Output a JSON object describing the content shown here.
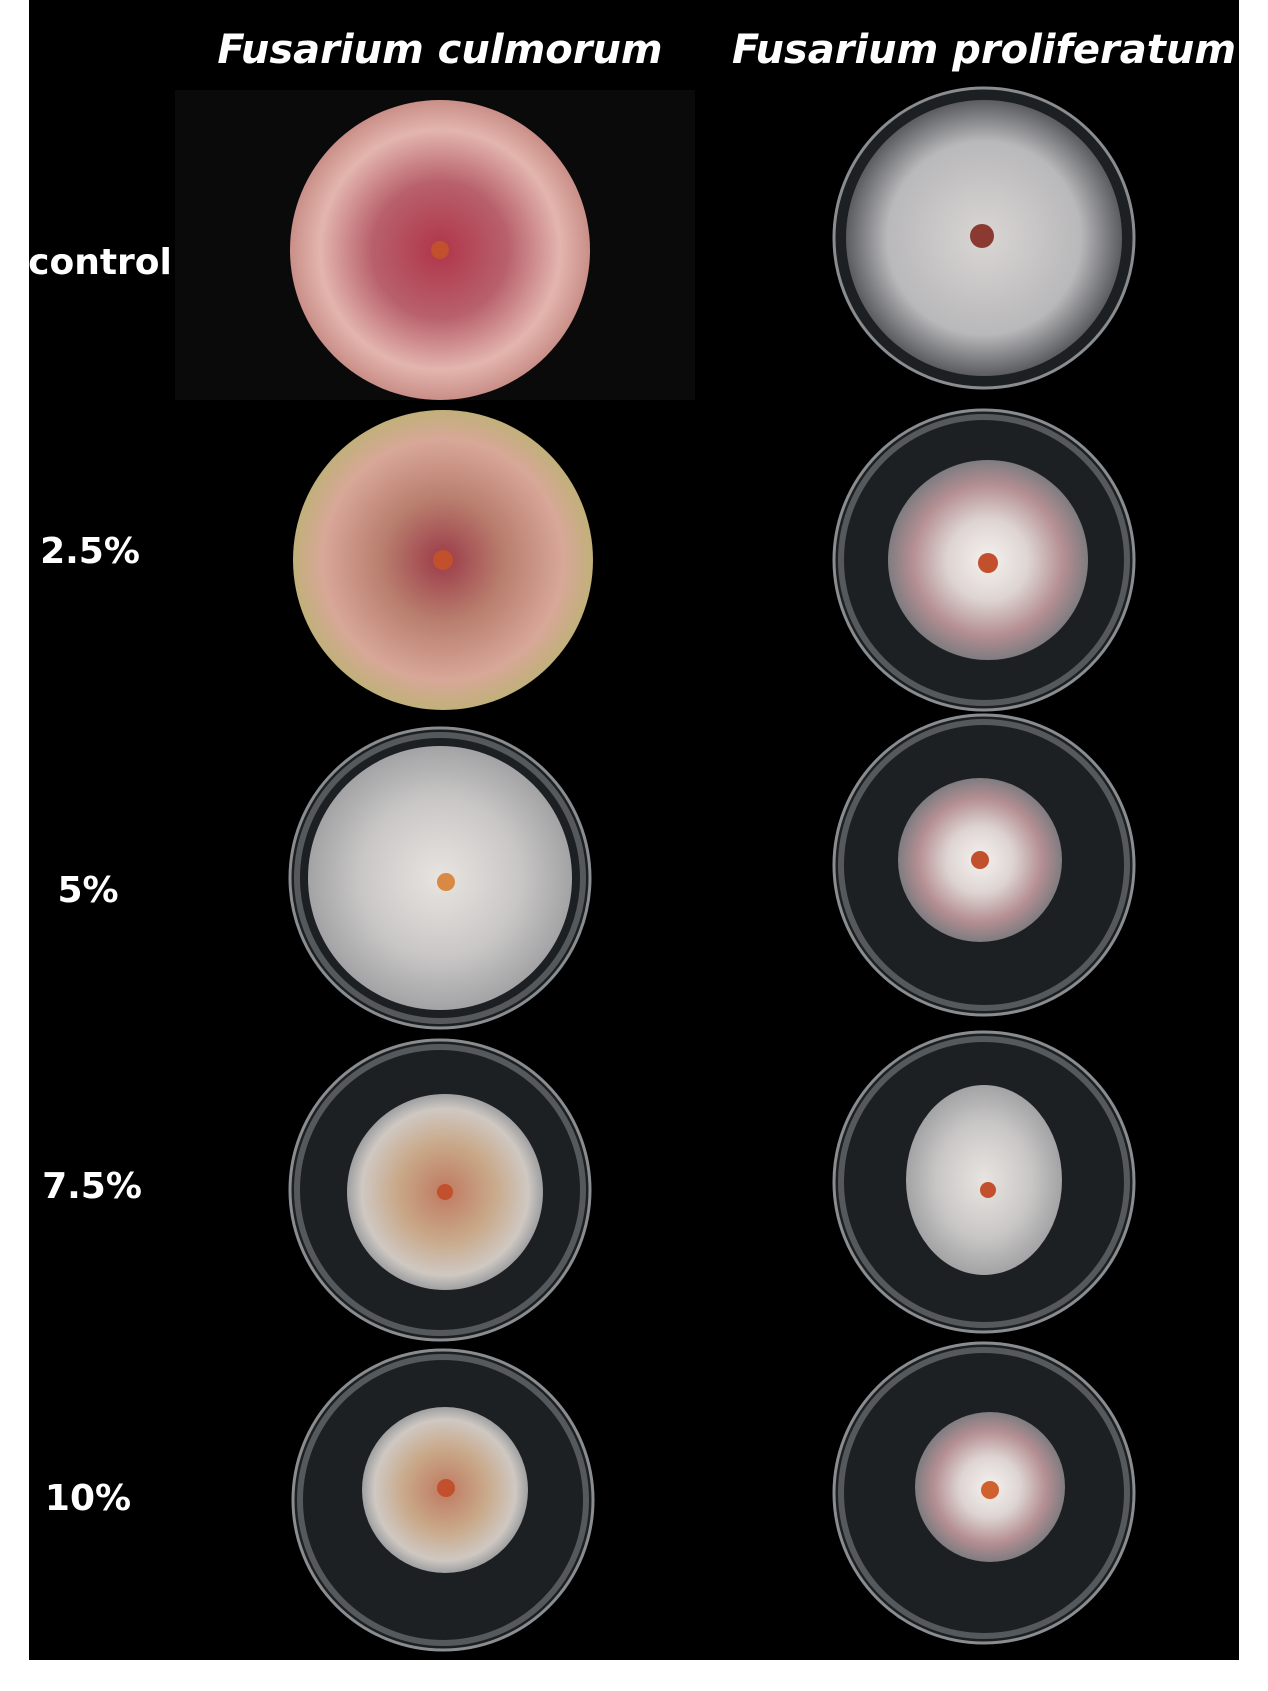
{
  "columns": [
    "Fusarium culmorum",
    "Fusarium proliferatum"
  ],
  "rows": [
    "control",
    "2.5%",
    "5%",
    "7.5%",
    "10%"
  ]
}
